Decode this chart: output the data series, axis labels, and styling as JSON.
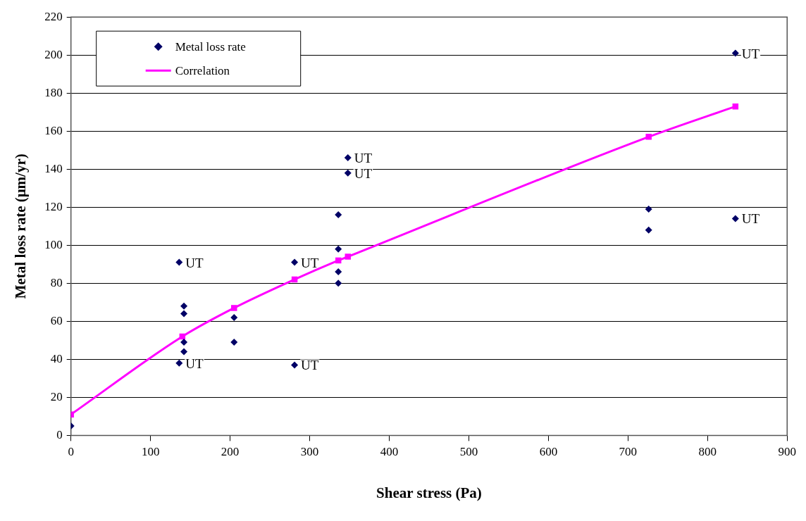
{
  "chart_data": {
    "type": "scatter",
    "xlabel": "Shear stress (Pa)",
    "ylabel": "Metal loss rate (μm/yr)",
    "xlim": [
      0,
      900
    ],
    "xticks": [
      0,
      100,
      200,
      300,
      400,
      500,
      600,
      700,
      800,
      900
    ],
    "ylim": [
      0,
      220
    ],
    "yticks": [
      0,
      20,
      40,
      60,
      80,
      100,
      120,
      140,
      160,
      180,
      200,
      220
    ],
    "grid": "y",
    "legend": "top left",
    "series": [
      {
        "name": "Metal loss rate",
        "marker": "diamond",
        "color": "#000066",
        "x": [
          0,
          136,
          142,
          142,
          142,
          142,
          136,
          205,
          205,
          281,
          281,
          336,
          336,
          336,
          336,
          348,
          348,
          726,
          726,
          835,
          835
        ],
        "values": [
          5,
          91,
          68,
          64,
          49,
          44,
          38,
          62,
          49,
          91,
          37,
          116,
          98,
          86,
          80,
          146,
          138,
          119,
          108,
          114,
          201
        ]
      },
      {
        "name": "Correlation",
        "type": "line",
        "marker": "square",
        "color": "#ff00ff",
        "x": [
          0,
          140,
          205,
          281,
          336,
          348,
          726,
          835
        ],
        "values": [
          11,
          52,
          67,
          82,
          92,
          94,
          157,
          173
        ]
      }
    ],
    "annotations": [
      {
        "text": "UT",
        "x": 136,
        "y": 91
      },
      {
        "text": "UT",
        "x": 136,
        "y": 38
      },
      {
        "text": "UT",
        "x": 281,
        "y": 91
      },
      {
        "text": "UT",
        "x": 281,
        "y": 37
      },
      {
        "text": "UT",
        "x": 348,
        "y": 146
      },
      {
        "text": "UT",
        "x": 348,
        "y": 138
      },
      {
        "text": "UT",
        "x": 835,
        "y": 114
      },
      {
        "text": "UT",
        "x": 835,
        "y": 201
      }
    ]
  }
}
